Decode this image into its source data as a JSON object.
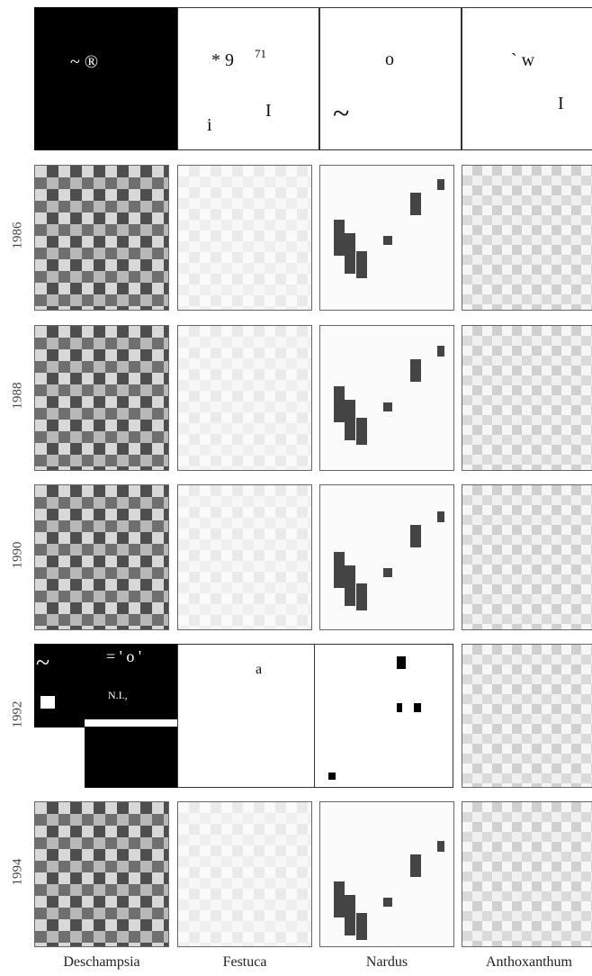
{
  "columns": [
    "Deschampsia",
    "Festuca",
    "Nardus",
    "Anthoxanthum"
  ],
  "rows": [
    "1986",
    "1988",
    "1990",
    "1992",
    "1994"
  ],
  "top_glyphs": [
    "~ ®",
    "* 9",
    "71",
    "i",
    "I",
    "o",
    "~",
    "` w",
    "I"
  ],
  "row1992_glyphs": [
    "~",
    "= ' o '",
    "N.I.,",
    "a"
  ]
}
